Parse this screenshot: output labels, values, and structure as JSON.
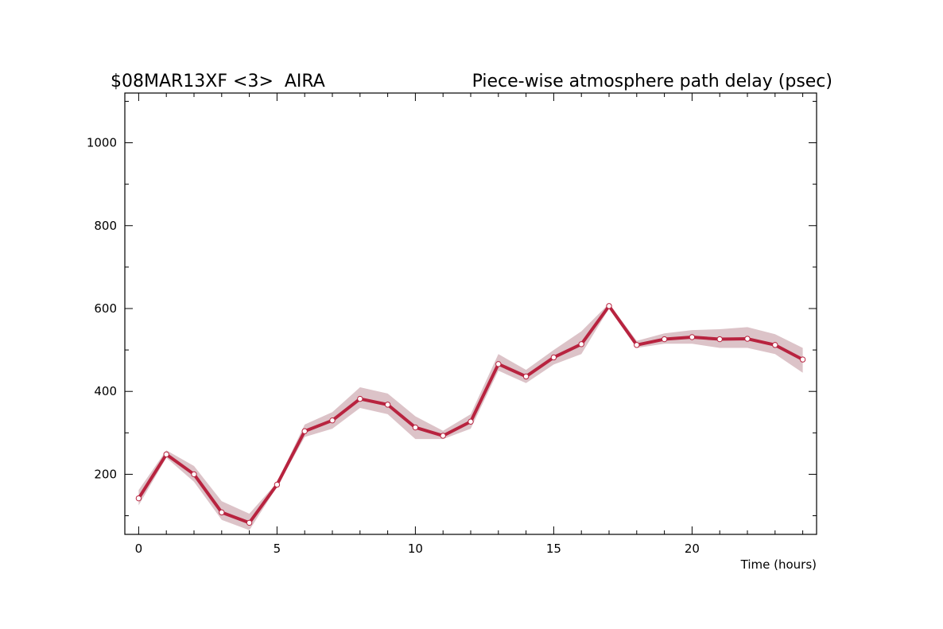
{
  "chart_data": {
    "type": "line",
    "title_left": "$08MAR13XF <3>  AIRA",
    "title_right": "Piece-wise atmosphere path delay (psec)",
    "xlabel": "Time (hours)",
    "ylabel": "",
    "xlim": [
      -0.5,
      24.5
    ],
    "ylim": [
      55,
      1120
    ],
    "x_major_ticks": [
      0,
      5,
      10,
      15,
      20
    ],
    "x_minor_step": 1,
    "y_major_ticks": [
      200,
      400,
      600,
      800,
      1000
    ],
    "y_minor_step": 100,
    "grid": false,
    "series": [
      {
        "x": [
          0,
          1,
          2,
          3,
          4,
          5,
          6,
          7,
          8,
          9,
          10,
          11,
          12,
          13,
          14,
          15,
          16,
          17,
          18,
          19,
          20,
          21,
          22,
          23,
          24
        ],
        "values": [
          142,
          248,
          200,
          108,
          83,
          175,
          304,
          330,
          382,
          368,
          313,
          293,
          327,
          466,
          436,
          482,
          514,
          606,
          512,
          526,
          531,
          526,
          527,
          512,
          477
        ],
        "upper": [
          162,
          258,
          220,
          135,
          105,
          180,
          320,
          350,
          410,
          395,
          340,
          305,
          345,
          490,
          452,
          500,
          545,
          612,
          522,
          540,
          548,
          550,
          555,
          538,
          505
        ],
        "lower": [
          125,
          240,
          182,
          90,
          65,
          170,
          290,
          310,
          360,
          345,
          285,
          285,
          310,
          450,
          420,
          465,
          490,
          600,
          505,
          515,
          515,
          505,
          505,
          490,
          445
        ]
      }
    ],
    "colors": {
      "line": "#b8233f",
      "band": "#dcc3c8",
      "marker_fill": "#ffffff",
      "axis": "#000000"
    }
  }
}
